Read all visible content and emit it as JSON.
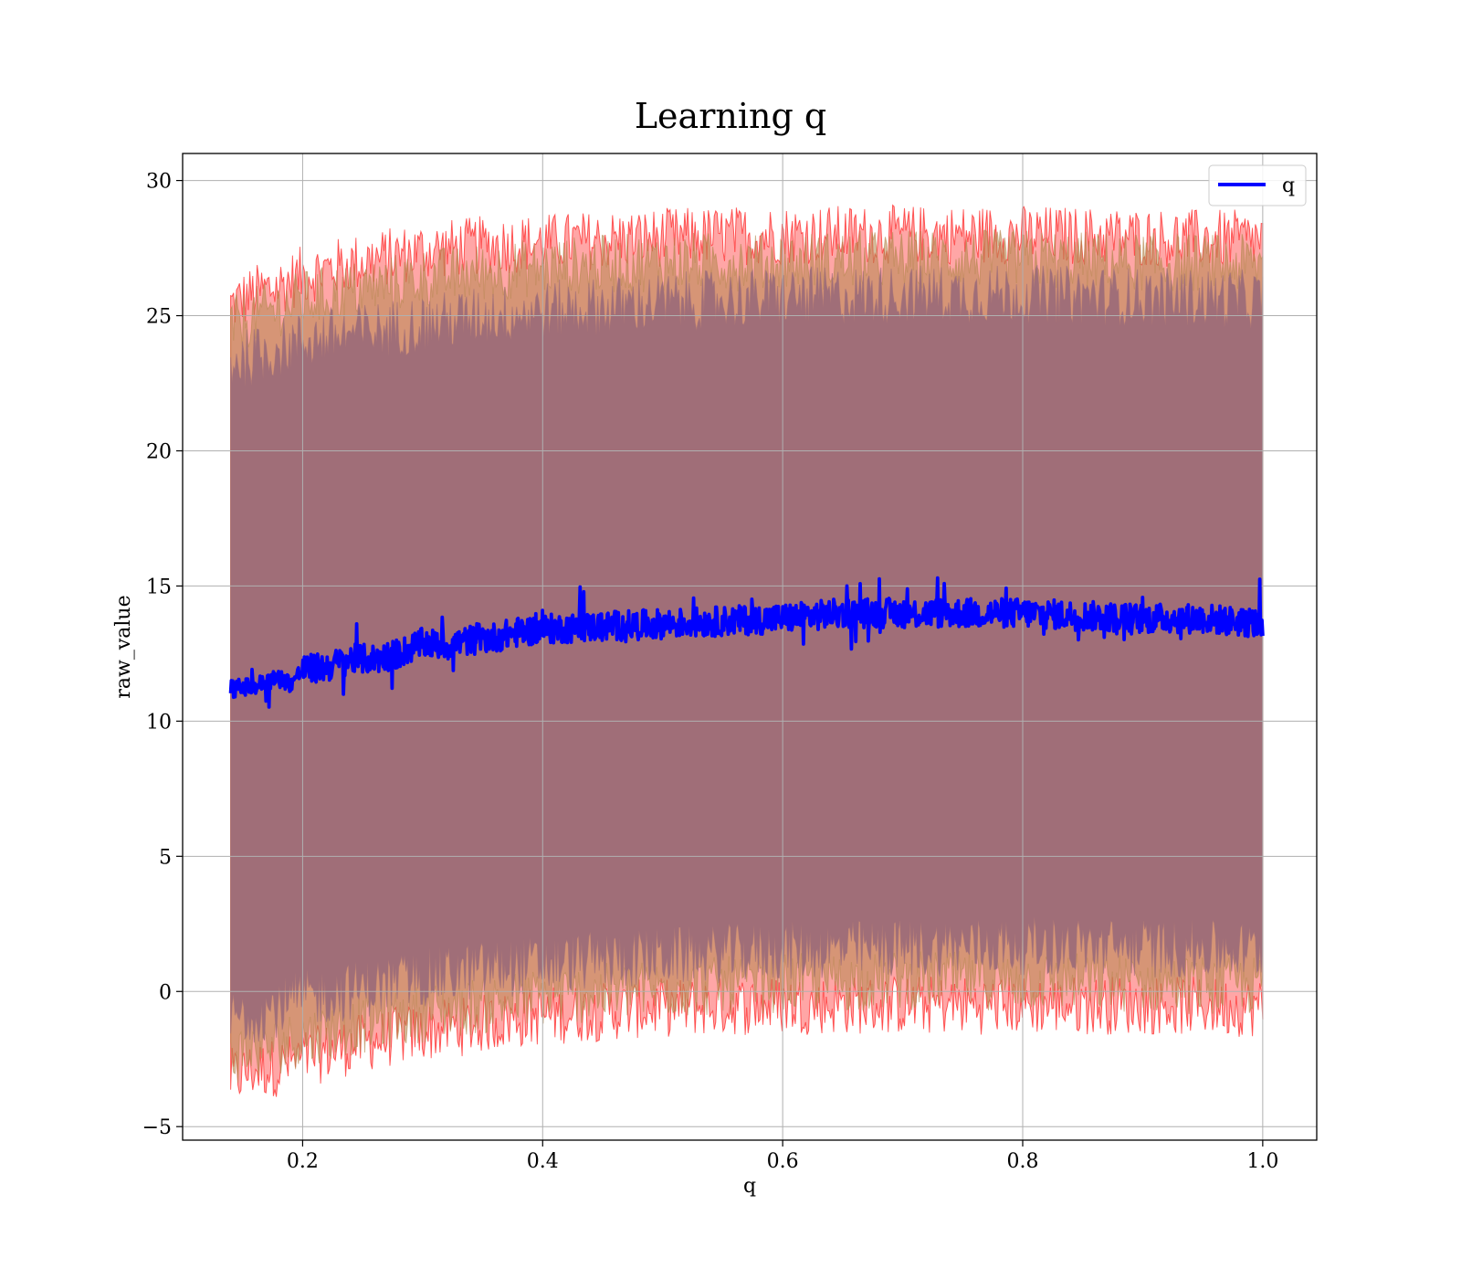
{
  "chart_data": {
    "type": "line",
    "title": "Learning q",
    "xlabel": "q",
    "ylabel": "raw_value",
    "xlim": [
      0.1,
      1.045
    ],
    "ylim": [
      -5.5,
      31.0
    ],
    "xticks": [
      0.2,
      0.4,
      0.6,
      0.8,
      1.0
    ],
    "xtick_labels": [
      "0.2",
      "0.4",
      "0.6",
      "0.8",
      "1.0"
    ],
    "yticks": [
      -5,
      0,
      5,
      10,
      15,
      20,
      25,
      30
    ],
    "ytick_labels": [
      "−5",
      "0",
      "5",
      "10",
      "15",
      "20",
      "25",
      "30"
    ],
    "grid": true,
    "legend": {
      "location": "top-right",
      "entries": [
        "q"
      ]
    },
    "series": [
      {
        "name": "q",
        "color": "#0000ff",
        "x": [
          0.14,
          0.16,
          0.18,
          0.19,
          0.2,
          0.22,
          0.24,
          0.26,
          0.28,
          0.3,
          0.32,
          0.34,
          0.36,
          0.38,
          0.4,
          0.45,
          0.5,
          0.55,
          0.6,
          0.65,
          0.7,
          0.75,
          0.8,
          0.85,
          0.9,
          0.95,
          1.0
        ],
        "values": [
          11.2,
          11.3,
          11.6,
          11.4,
          11.9,
          12.0,
          12.3,
          12.3,
          12.5,
          12.9,
          12.8,
          13.0,
          13.1,
          13.3,
          13.4,
          13.5,
          13.6,
          13.7,
          13.8,
          14.0,
          14.0,
          14.0,
          14.0,
          13.9,
          13.8,
          13.8,
          13.6
        ],
        "noise_amplitude": 0.55
      }
    ],
    "bands": [
      {
        "name": "outer band",
        "color": "#ff0000",
        "opacity": 0.35,
        "x": [
          0.14,
          0.16,
          0.18,
          0.2,
          0.25,
          0.3,
          0.35,
          0.4,
          0.5,
          0.6,
          0.7,
          0.8,
          0.9,
          1.0
        ],
        "upper": [
          25.4,
          25.8,
          26.1,
          26.5,
          27.0,
          27.4,
          27.6,
          27.7,
          27.9,
          28.0,
          28.0,
          28.0,
          27.9,
          27.8
        ],
        "lower": [
          -3.2,
          -2.9,
          -2.8,
          -2.5,
          -1.9,
          -1.5,
          -1.2,
          -0.9,
          -0.6,
          -0.5,
          -0.5,
          -0.5,
          -0.5,
          -0.6
        ]
      },
      {
        "name": "middle band",
        "color": "#b4874f",
        "opacity": 0.55,
        "x": [
          0.14,
          0.16,
          0.18,
          0.2,
          0.25,
          0.3,
          0.35,
          0.4,
          0.5,
          0.6,
          0.7,
          0.8,
          0.9,
          1.0
        ],
        "upper": [
          24.6,
          25.0,
          25.3,
          25.6,
          26.0,
          26.4,
          26.6,
          26.8,
          27.0,
          27.0,
          27.1,
          27.1,
          27.0,
          26.9
        ],
        "lower": [
          -2.4,
          -2.2,
          -2.0,
          -1.7,
          -1.2,
          -0.8,
          -0.5,
          -0.2,
          0.1,
          0.3,
          0.4,
          0.4,
          0.3,
          0.2
        ]
      },
      {
        "name": "inner band",
        "color": "#a06e78",
        "opacity": 1.0,
        "x": [
          0.14,
          0.16,
          0.18,
          0.2,
          0.25,
          0.3,
          0.35,
          0.4,
          0.5,
          0.6,
          0.7,
          0.8,
          0.9,
          1.0
        ],
        "upper": [
          23.3,
          23.5,
          23.8,
          24.1,
          24.4,
          24.7,
          25.0,
          25.2,
          25.5,
          25.7,
          25.8,
          25.8,
          25.7,
          25.6
        ],
        "lower": [
          -1.0,
          -0.8,
          -0.6,
          -0.3,
          0.1,
          0.5,
          0.8,
          1.0,
          1.3,
          1.5,
          1.6,
          1.7,
          1.6,
          1.5
        ]
      }
    ]
  }
}
